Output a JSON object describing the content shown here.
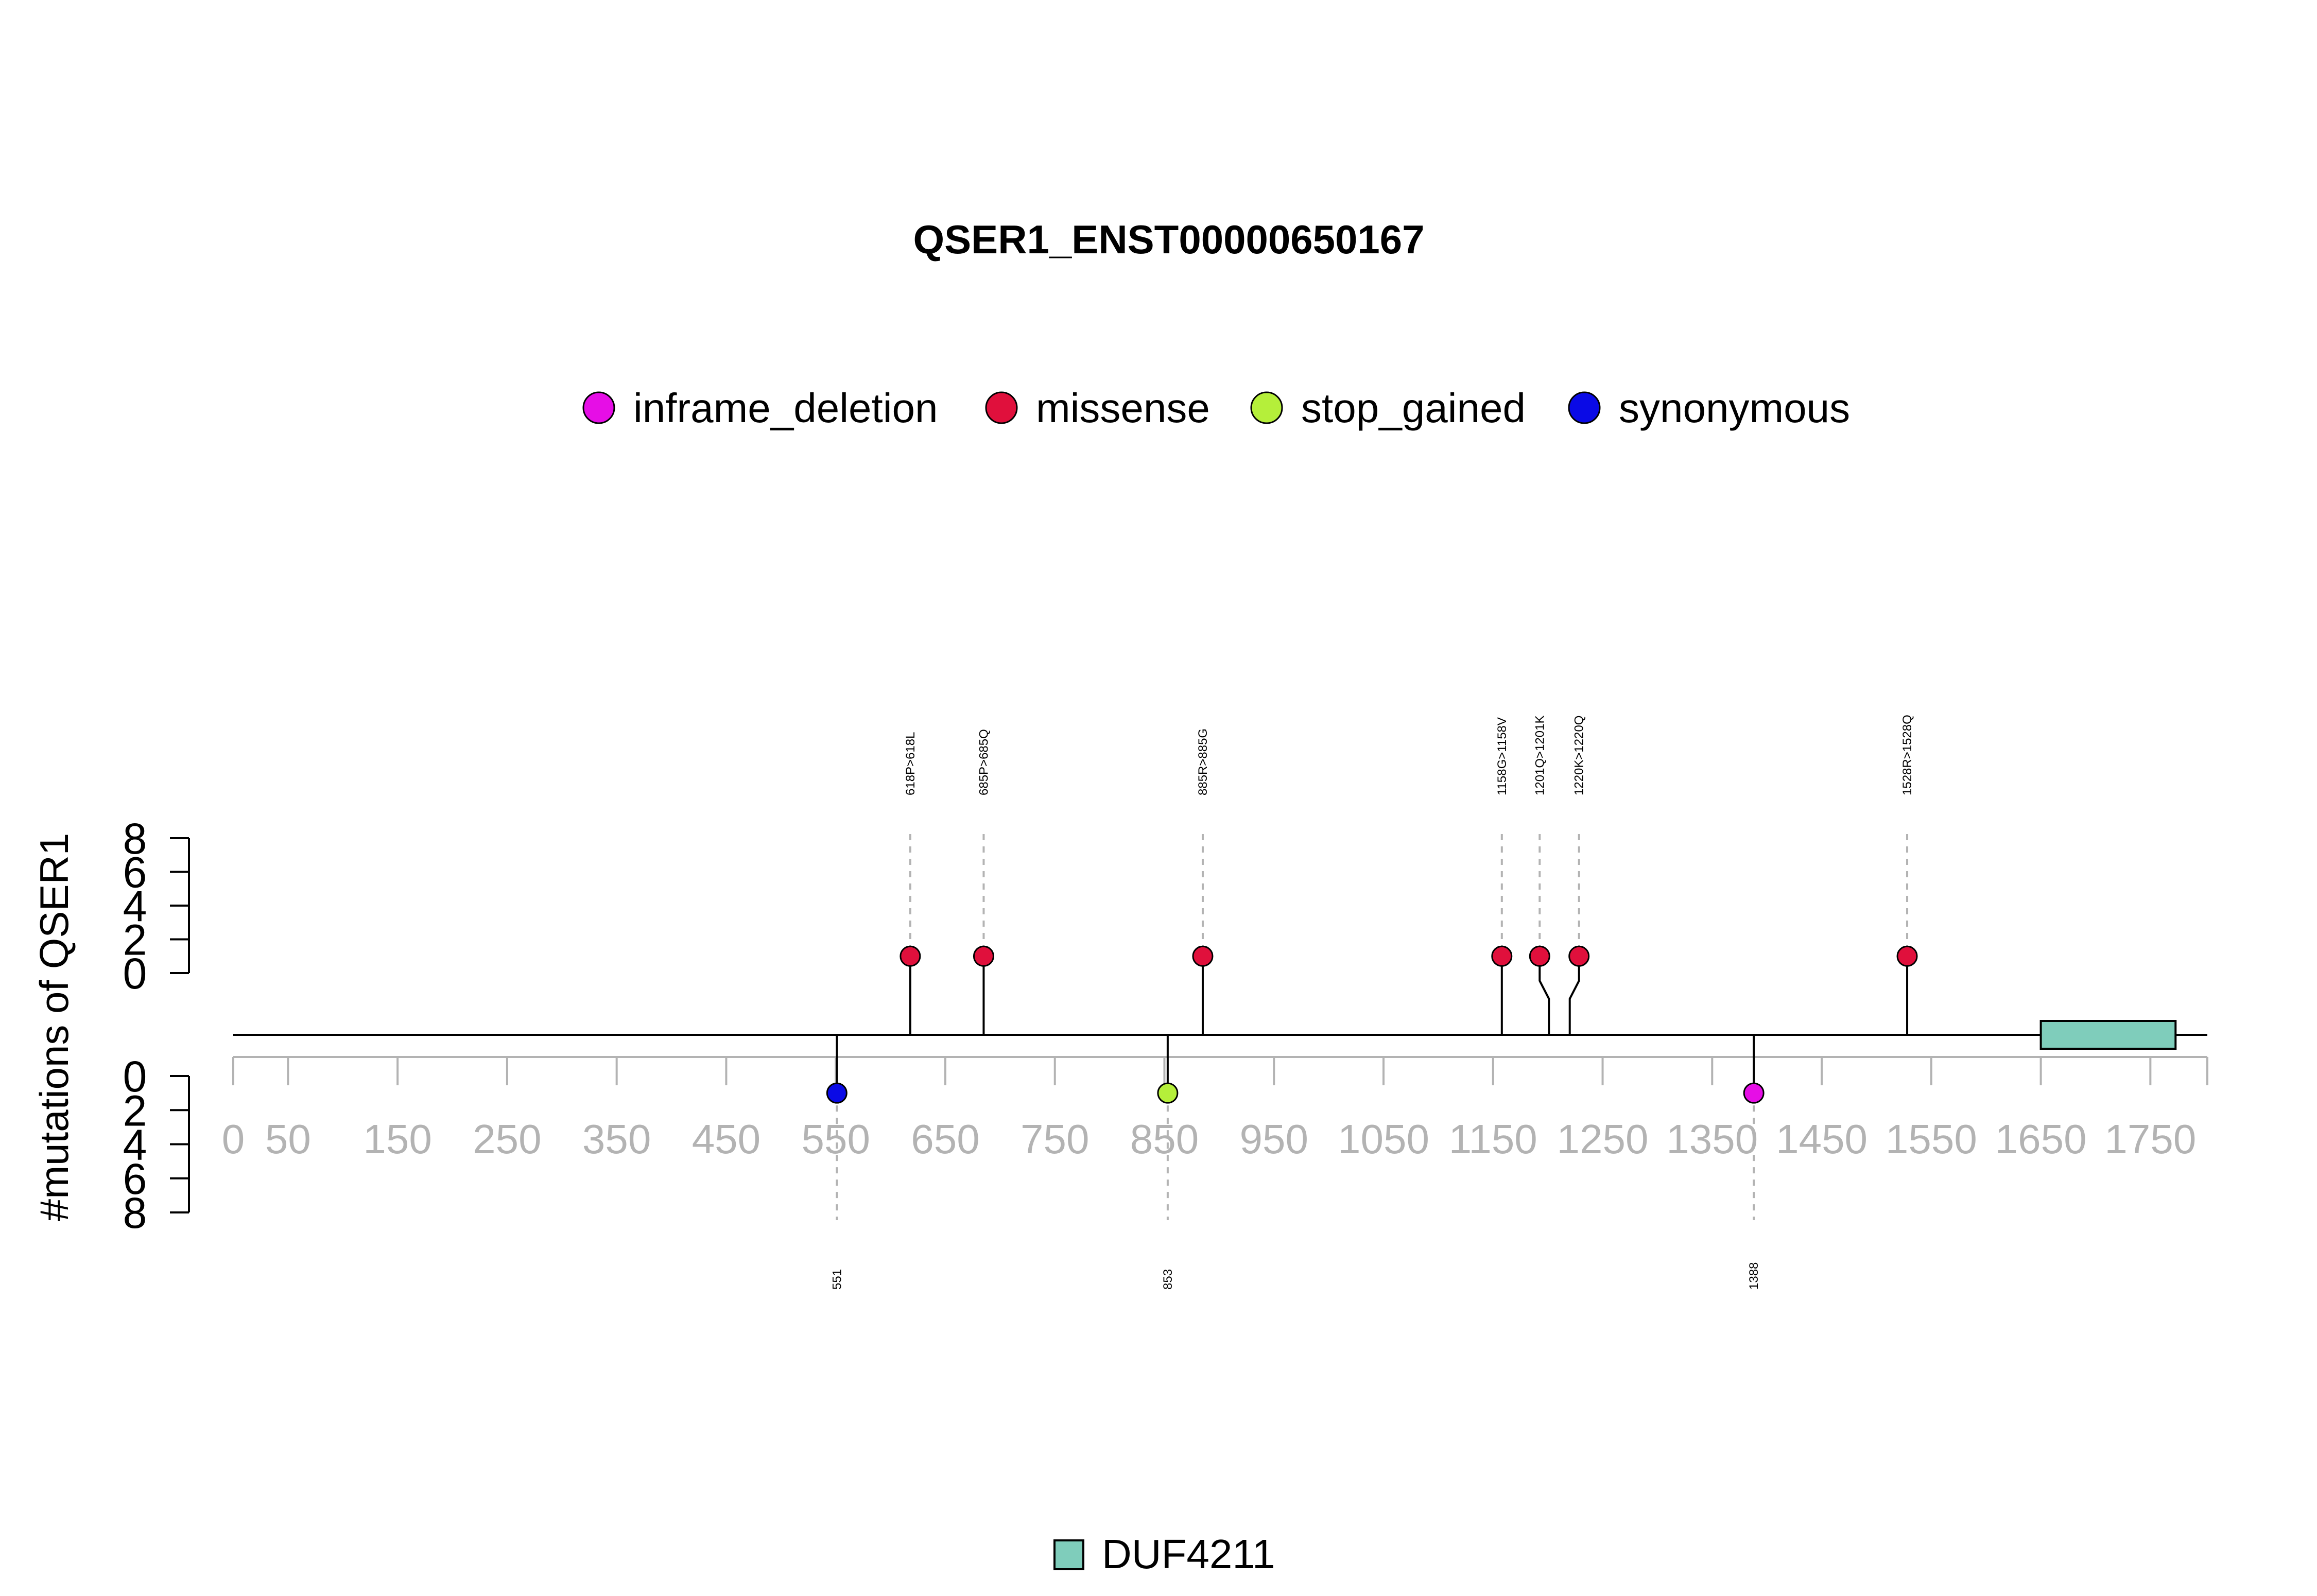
{
  "chart_data": {
    "type": "lollipop",
    "title": "QSER1_ENST00000650167",
    "ylabel": "#mutations of QSER1",
    "ylim": [
      0,
      8
    ],
    "y_ticks": [
      0,
      2,
      4,
      6,
      8
    ],
    "xlim": [
      0,
      1802
    ],
    "x_ticks": [
      0,
      50,
      150,
      250,
      350,
      450,
      550,
      650,
      750,
      850,
      950,
      1050,
      1150,
      1250,
      1350,
      1450,
      1550,
      1650,
      1750
    ],
    "colors": {
      "inframe_deletion": "#e60ee6",
      "missense": "#e0103c",
      "stop_gained": "#b5ef3a",
      "synonymous": "#0a0ae6",
      "domain": "#7fcdbb"
    },
    "legend": [
      {
        "name": "inframe_deletion",
        "color": "#e60ee6"
      },
      {
        "name": "missense",
        "color": "#e0103c"
      },
      {
        "name": "stop_gained",
        "color": "#b5ef3a"
      },
      {
        "name": "synonymous",
        "color": "#0a0ae6"
      }
    ],
    "mutations_top": [
      {
        "pos": 618,
        "label": "618P>618L",
        "count": 1,
        "type": "missense"
      },
      {
        "pos": 685,
        "label": "685P>685Q",
        "count": 1,
        "type": "missense"
      },
      {
        "pos": 885,
        "label": "885R>885G",
        "count": 1,
        "type": "missense"
      },
      {
        "pos": 1158,
        "label": "1158G>1158V",
        "count": 1,
        "type": "missense"
      },
      {
        "pos": 1201,
        "label": "1201Q>1201K",
        "count": 1,
        "type": "missense"
      },
      {
        "pos": 1220,
        "label": "1220K>1220Q",
        "count": 1,
        "type": "missense"
      },
      {
        "pos": 1528,
        "label": "1528R>1528Q",
        "count": 1,
        "type": "missense"
      }
    ],
    "mutations_bottom": [
      {
        "pos": 551,
        "label": "551",
        "count": 1,
        "type": "synonymous"
      },
      {
        "pos": 853,
        "label": "853",
        "count": 1,
        "type": "stop_gained"
      },
      {
        "pos": 1388,
        "label": "1388",
        "count": 1,
        "type": "inframe_deletion"
      }
    ],
    "domains": [
      {
        "name": "DUF4211",
        "start": 1650,
        "end": 1773,
        "color": "#7fcdbb"
      }
    ]
  }
}
